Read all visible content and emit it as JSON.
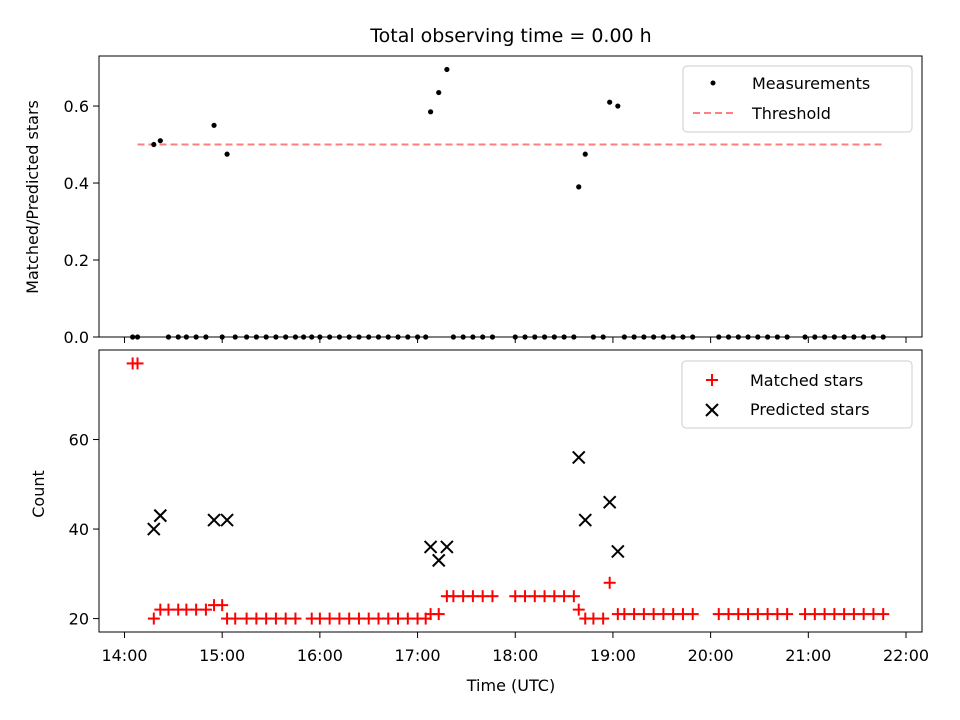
{
  "chart_data": [
    {
      "type": "scatter",
      "title": "Total observing time = 0.00 h",
      "xlabel": "",
      "ylabel": "Matched/Predicted stars",
      "xlim": [
        "14:00",
        "22:00"
      ],
      "ylim": [
        0,
        0.73
      ],
      "yticks": [
        0.0,
        0.2,
        0.4,
        0.6
      ],
      "ytick_labels": [
        "0.0",
        "0.2",
        "0.4",
        "0.6"
      ],
      "xtick_labels_shown": false,
      "legend": "top-right",
      "colors": {
        "measurements": "#000000",
        "threshold": "#ff7f7f"
      },
      "series": [
        {
          "name": "Measurements",
          "marker": "dot",
          "points": [
            [
              "14:05",
              0
            ],
            [
              "14:08",
              0
            ],
            [
              "14:18",
              0.5
            ],
            [
              "14:22",
              0.51
            ],
            [
              "14:27",
              0
            ],
            [
              "14:33",
              0
            ],
            [
              "14:38",
              0
            ],
            [
              "14:44",
              0
            ],
            [
              "14:50",
              0
            ],
            [
              "14:55",
              0.55
            ],
            [
              "15:00",
              0
            ],
            [
              "15:03",
              0.475
            ],
            [
              "15:08",
              0
            ],
            [
              "15:15",
              0
            ],
            [
              "15:21",
              0
            ],
            [
              "15:27",
              0
            ],
            [
              "15:33",
              0
            ],
            [
              "15:39",
              0
            ],
            [
              "15:45",
              0
            ],
            [
              "15:50",
              0
            ],
            [
              "15:55",
              0
            ],
            [
              "16:00",
              0
            ],
            [
              "16:06",
              0
            ],
            [
              "16:12",
              0
            ],
            [
              "16:18",
              0
            ],
            [
              "16:24",
              0
            ],
            [
              "16:30",
              0
            ],
            [
              "16:36",
              0
            ],
            [
              "16:42",
              0
            ],
            [
              "16:48",
              0
            ],
            [
              "16:54",
              0
            ],
            [
              "17:00",
              0
            ],
            [
              "17:05",
              0
            ],
            [
              "17:08",
              0.585
            ],
            [
              "17:13",
              0.635
            ],
            [
              "17:18",
              0.695
            ],
            [
              "17:22",
              0
            ],
            [
              "17:28",
              0
            ],
            [
              "17:34",
              0
            ],
            [
              "17:40",
              0
            ],
            [
              "17:46",
              0
            ],
            [
              "18:00",
              0
            ],
            [
              "18:06",
              0
            ],
            [
              "18:12",
              0
            ],
            [
              "18:18",
              0
            ],
            [
              "18:24",
              0
            ],
            [
              "18:30",
              0
            ],
            [
              "18:36",
              0
            ],
            [
              "18:39",
              0.39
            ],
            [
              "18:43",
              0.475
            ],
            [
              "18:48",
              0
            ],
            [
              "18:54",
              0
            ],
            [
              "18:58",
              0.61
            ],
            [
              "19:03",
              0.6
            ],
            [
              "19:07",
              0
            ],
            [
              "19:13",
              0
            ],
            [
              "19:19",
              0
            ],
            [
              "19:25",
              0
            ],
            [
              "19:31",
              0
            ],
            [
              "19:37",
              0
            ],
            [
              "19:43",
              0
            ],
            [
              "19:49",
              0
            ],
            [
              "20:05",
              0
            ],
            [
              "20:11",
              0
            ],
            [
              "20:17",
              0
            ],
            [
              "20:23",
              0
            ],
            [
              "20:29",
              0
            ],
            [
              "20:35",
              0
            ],
            [
              "20:41",
              0
            ],
            [
              "20:47",
              0
            ],
            [
              "20:58",
              0
            ],
            [
              "21:04",
              0
            ],
            [
              "21:10",
              0
            ],
            [
              "21:16",
              0
            ],
            [
              "21:22",
              0
            ],
            [
              "21:28",
              0
            ],
            [
              "21:34",
              0
            ],
            [
              "21:40",
              0
            ],
            [
              "21:46",
              0
            ]
          ]
        },
        {
          "name": "Threshold",
          "line_style": "dashed",
          "points": [
            [
              "14:08",
              0.5
            ],
            [
              "21:46",
              0.5
            ]
          ]
        }
      ]
    },
    {
      "type": "scatter",
      "title": "",
      "xlabel": "Time (UTC)",
      "ylabel": "Count",
      "xlim": [
        "14:00",
        "22:00"
      ],
      "ylim": [
        17,
        80
      ],
      "xticks": [
        "14:00",
        "15:00",
        "16:00",
        "17:00",
        "18:00",
        "19:00",
        "20:00",
        "21:00",
        "22:00"
      ],
      "yticks": [
        20,
        40,
        60
      ],
      "ytick_labels": [
        "20",
        "40",
        "60"
      ],
      "legend": "top-right",
      "colors": {
        "matched": "#ff0000",
        "predicted": "#000000"
      },
      "series": [
        {
          "name": "Matched stars",
          "marker": "plus",
          "points": [
            [
              "14:05",
              77
            ],
            [
              "14:08",
              77
            ],
            [
              "14:18",
              20
            ],
            [
              "14:22",
              22
            ],
            [
              "14:27",
              22
            ],
            [
              "14:33",
              22
            ],
            [
              "14:38",
              22
            ],
            [
              "14:44",
              22
            ],
            [
              "14:50",
              22
            ],
            [
              "14:55",
              23
            ],
            [
              "15:00",
              23
            ],
            [
              "15:03",
              20
            ],
            [
              "15:08",
              20
            ],
            [
              "15:15",
              20
            ],
            [
              "15:21",
              20
            ],
            [
              "15:27",
              20
            ],
            [
              "15:33",
              20
            ],
            [
              "15:39",
              20
            ],
            [
              "15:45",
              20
            ],
            [
              "15:55",
              20
            ],
            [
              "16:00",
              20
            ],
            [
              "16:06",
              20
            ],
            [
              "16:12",
              20
            ],
            [
              "16:18",
              20
            ],
            [
              "16:24",
              20
            ],
            [
              "16:30",
              20
            ],
            [
              "16:36",
              20
            ],
            [
              "16:42",
              20
            ],
            [
              "16:48",
              20
            ],
            [
              "16:54",
              20
            ],
            [
              "17:00",
              20
            ],
            [
              "17:05",
              20
            ],
            [
              "17:08",
              21
            ],
            [
              "17:13",
              21
            ],
            [
              "17:18",
              25
            ],
            [
              "17:22",
              25
            ],
            [
              "17:28",
              25
            ],
            [
              "17:34",
              25
            ],
            [
              "17:40",
              25
            ],
            [
              "17:46",
              25
            ],
            [
              "18:00",
              25
            ],
            [
              "18:06",
              25
            ],
            [
              "18:12",
              25
            ],
            [
              "18:18",
              25
            ],
            [
              "18:24",
              25
            ],
            [
              "18:30",
              25
            ],
            [
              "18:36",
              25
            ],
            [
              "18:39",
              22
            ],
            [
              "18:43",
              20
            ],
            [
              "18:48",
              20
            ],
            [
              "18:54",
              20
            ],
            [
              "18:58",
              28
            ],
            [
              "19:03",
              21
            ],
            [
              "19:07",
              21
            ],
            [
              "19:13",
              21
            ],
            [
              "19:19",
              21
            ],
            [
              "19:25",
              21
            ],
            [
              "19:31",
              21
            ],
            [
              "19:37",
              21
            ],
            [
              "19:43",
              21
            ],
            [
              "19:49",
              21
            ],
            [
              "20:05",
              21
            ],
            [
              "20:11",
              21
            ],
            [
              "20:17",
              21
            ],
            [
              "20:23",
              21
            ],
            [
              "20:29",
              21
            ],
            [
              "20:35",
              21
            ],
            [
              "20:41",
              21
            ],
            [
              "20:47",
              21
            ],
            [
              "20:58",
              21
            ],
            [
              "21:04",
              21
            ],
            [
              "21:10",
              21
            ],
            [
              "21:16",
              21
            ],
            [
              "21:22",
              21
            ],
            [
              "21:28",
              21
            ],
            [
              "21:34",
              21
            ],
            [
              "21:40",
              21
            ],
            [
              "21:46",
              21
            ]
          ]
        },
        {
          "name": "Predicted stars",
          "marker": "x",
          "points": [
            [
              "14:18",
              40
            ],
            [
              "14:22",
              43
            ],
            [
              "14:55",
              42
            ],
            [
              "15:03",
              42
            ],
            [
              "17:08",
              36
            ],
            [
              "17:13",
              33
            ],
            [
              "17:18",
              36
            ],
            [
              "18:39",
              56
            ],
            [
              "18:43",
              42
            ],
            [
              "18:58",
              46
            ],
            [
              "19:03",
              35
            ]
          ]
        }
      ]
    }
  ]
}
